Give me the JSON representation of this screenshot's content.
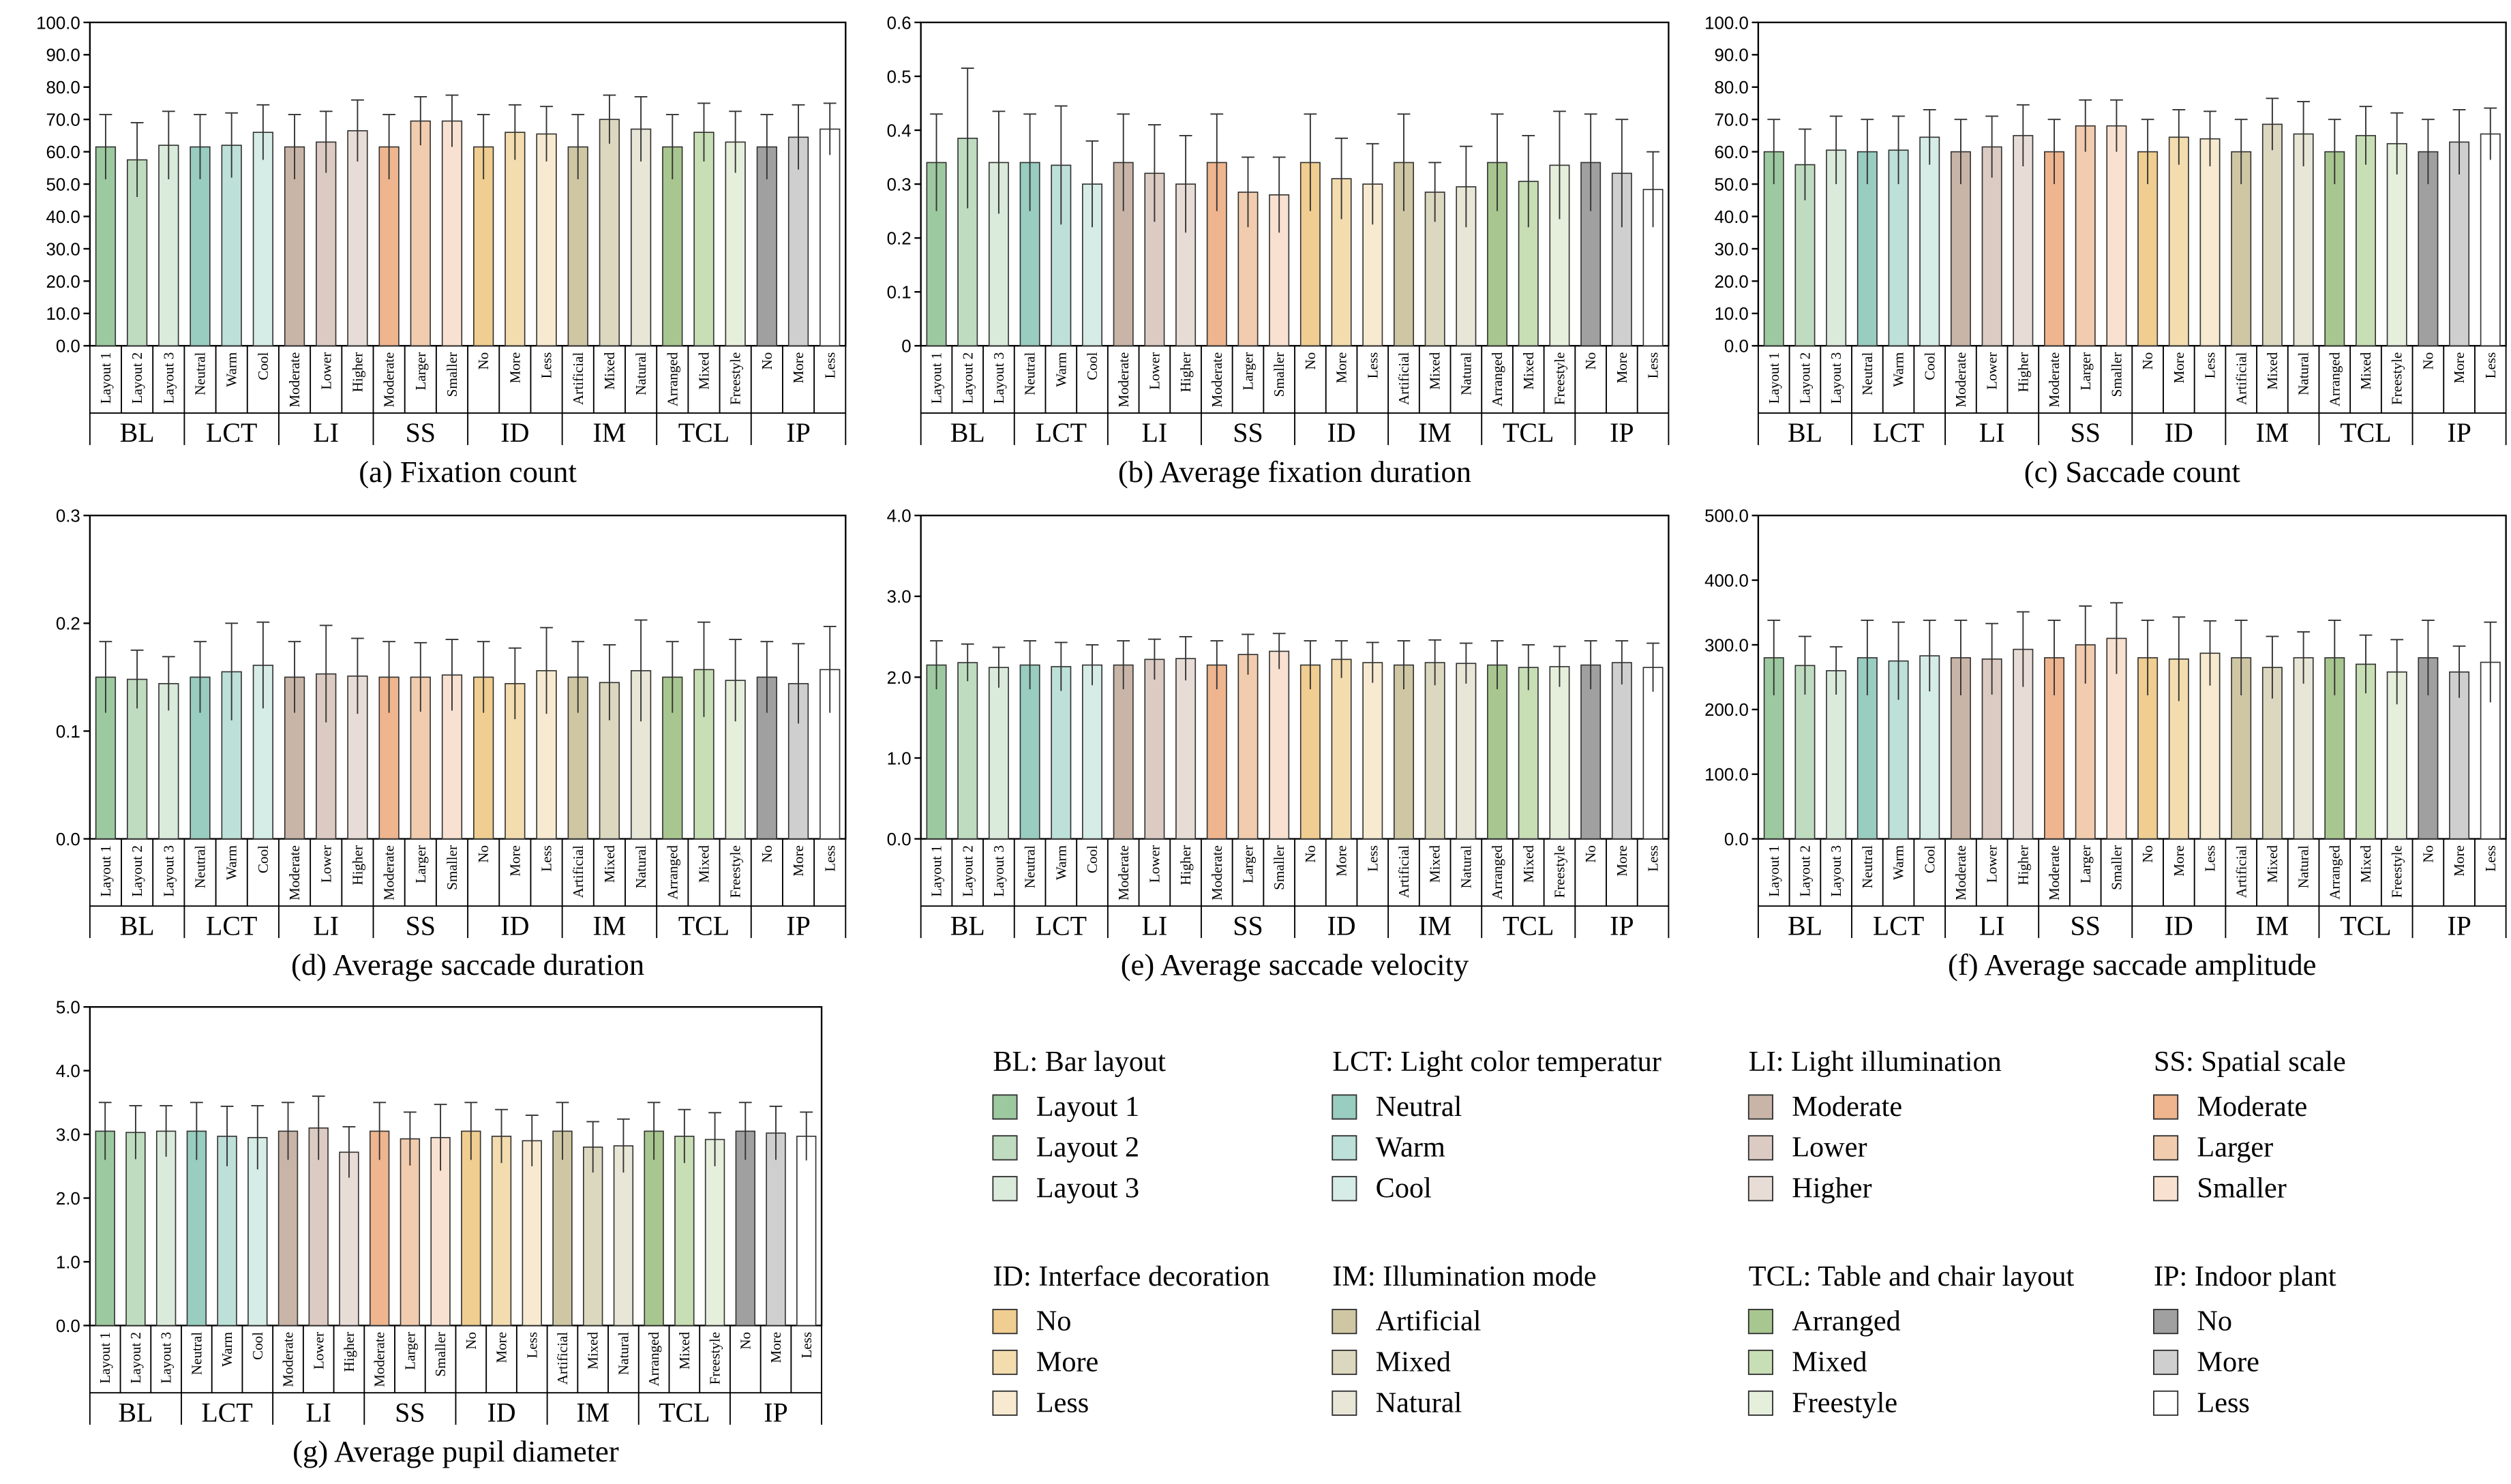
{
  "chart_data": [
    {
      "type": "bar",
      "title": "(a) Fixation count",
      "categories": [
        "Layout 1",
        "Layout 2",
        "Layout 3",
        "Neutral",
        "Warm",
        "Cool",
        "Moderate",
        "Lower",
        "Higher",
        "Moderate",
        "Larger",
        "Smaller",
        "No",
        "More",
        "Less",
        "Artificial",
        "Mixed",
        "Natural",
        "Arranged",
        "Mixed",
        "Freestyle",
        "No",
        "More",
        "Less"
      ],
      "groups": [
        "BL",
        "LCT",
        "LI",
        "SS",
        "ID",
        "IM",
        "TCL",
        "IP"
      ],
      "values": [
        61.5,
        57.5,
        62,
        61.5,
        62,
        66,
        61.5,
        63,
        66.5,
        61.5,
        69.5,
        69.5,
        61.5,
        66,
        65.5,
        61.5,
        70,
        67,
        61.5,
        66,
        63,
        61.5,
        64.5,
        67
      ],
      "errors": [
        10,
        11.5,
        10.5,
        10,
        10,
        8.5,
        10,
        9.5,
        9.5,
        10,
        7.5,
        8,
        10,
        8.5,
        8.5,
        10,
        7.5,
        10,
        10,
        9,
        9.5,
        10,
        10,
        8
      ],
      "ylim": [
        0,
        100
      ],
      "yticks": [
        {
          "value": 0,
          "label": "0.0"
        },
        {
          "value": 10,
          "label": "10.0"
        },
        {
          "value": 20,
          "label": "20.0"
        },
        {
          "value": 30,
          "label": "30.0"
        },
        {
          "value": 40,
          "label": "40.0"
        },
        {
          "value": 50,
          "label": "50.0"
        },
        {
          "value": 60,
          "label": "60.0"
        },
        {
          "value": 70,
          "label": "70.0"
        },
        {
          "value": 80,
          "label": "80.0"
        },
        {
          "value": 90,
          "label": "90.0"
        },
        {
          "value": 100,
          "label": "100.0"
        }
      ]
    },
    {
      "type": "bar",
      "title": "(b) Average fixation duration",
      "categories": [
        "Layout 1",
        "Layout 2",
        "Layout 3",
        "Neutral",
        "Warm",
        "Cool",
        "Moderate",
        "Lower",
        "Higher",
        "Moderate",
        "Larger",
        "Smaller",
        "No",
        "More",
        "Less",
        "Artificial",
        "Mixed",
        "Natural",
        "Arranged",
        "Mixed",
        "Freestyle",
        "No",
        "More",
        "Less"
      ],
      "groups": [
        "BL",
        "LCT",
        "LI",
        "SS",
        "ID",
        "IM",
        "TCL",
        "IP"
      ],
      "values": [
        0.34,
        0.385,
        0.34,
        0.34,
        0.335,
        0.3,
        0.34,
        0.32,
        0.3,
        0.34,
        0.285,
        0.28,
        0.34,
        0.31,
        0.3,
        0.34,
        0.285,
        0.295,
        0.34,
        0.305,
        0.335,
        0.34,
        0.32,
        0.29
      ],
      "errors": [
        0.09,
        0.13,
        0.095,
        0.09,
        0.11,
        0.08,
        0.09,
        0.09,
        0.09,
        0.09,
        0.065,
        0.07,
        0.09,
        0.075,
        0.075,
        0.09,
        0.055,
        0.075,
        0.09,
        0.085,
        0.1,
        0.09,
        0.1,
        0.07
      ],
      "ylim": [
        0,
        0.6
      ],
      "yticks": [
        0,
        0.1,
        0.2,
        0.3,
        0.4,
        0.5,
        0.6
      ]
    },
    {
      "type": "bar",
      "title": "(c) Saccade count",
      "categories": [
        "Layout 1",
        "Layout 2",
        "Layout 3",
        "Neutral",
        "Warm",
        "Cool",
        "Moderate",
        "Lower",
        "Higher",
        "Moderate",
        "Larger",
        "Smaller",
        "No",
        "More",
        "Less",
        "Artificial",
        "Mixed",
        "Natural",
        "Arranged",
        "Mixed",
        "Freestyle",
        "No",
        "More",
        "Less"
      ],
      "groups": [
        "BL",
        "LCT",
        "LI",
        "SS",
        "ID",
        "IM",
        "TCL",
        "IP"
      ],
      "values": [
        60,
        56,
        60.5,
        60,
        60.5,
        64.5,
        60,
        61.5,
        65,
        60,
        68,
        68,
        60,
        64.5,
        64,
        60,
        68.5,
        65.5,
        60,
        65,
        62.5,
        60,
        63,
        65.5
      ],
      "errors": [
        10,
        11,
        10.5,
        10,
        10.5,
        8.5,
        10,
        9.5,
        9.5,
        10,
        8,
        8,
        10,
        8.5,
        8.5,
        10,
        8,
        10,
        10,
        9,
        9.5,
        10,
        10,
        8
      ],
      "ylim": [
        0,
        100
      ],
      "yticks": [
        {
          "value": 0,
          "label": "0.0"
        },
        {
          "value": 10,
          "label": "10.0"
        },
        {
          "value": 20,
          "label": "20.0"
        },
        {
          "value": 30,
          "label": "30.0"
        },
        {
          "value": 40,
          "label": "40.0"
        },
        {
          "value": 50,
          "label": "50.0"
        },
        {
          "value": 60,
          "label": "60.0"
        },
        {
          "value": 70,
          "label": "70.0"
        },
        {
          "value": 80,
          "label": "80.0"
        },
        {
          "value": 90,
          "label": "90.0"
        },
        {
          "value": 100,
          "label": "100.0"
        }
      ]
    },
    {
      "type": "bar",
      "title": "(d) Average saccade duration",
      "categories": [
        "Layout 1",
        "Layout 2",
        "Layout 3",
        "Neutral",
        "Warm",
        "Cool",
        "Moderate",
        "Lower",
        "Higher",
        "Moderate",
        "Larger",
        "Smaller",
        "No",
        "More",
        "Less",
        "Artificial",
        "Mixed",
        "Natural",
        "Arranged",
        "Mixed",
        "Freestyle",
        "No",
        "More",
        "Less"
      ],
      "groups": [
        "BL",
        "LCT",
        "LI",
        "SS",
        "ID",
        "IM",
        "TCL",
        "IP"
      ],
      "values": [
        0.15,
        0.148,
        0.144,
        0.15,
        0.155,
        0.161,
        0.15,
        0.153,
        0.151,
        0.15,
        0.15,
        0.152,
        0.15,
        0.144,
        0.156,
        0.15,
        0.145,
        0.156,
        0.15,
        0.157,
        0.147,
        0.15,
        0.144,
        0.157
      ],
      "errors": [
        0.033,
        0.027,
        0.025,
        0.033,
        0.045,
        0.04,
        0.033,
        0.045,
        0.035,
        0.033,
        0.032,
        0.033,
        0.033,
        0.033,
        0.04,
        0.033,
        0.035,
        0.047,
        0.033,
        0.044,
        0.038,
        0.033,
        0.037,
        0.04
      ],
      "ylim": [
        0,
        0.3
      ],
      "yticks": [
        {
          "value": 0,
          "label": "0.0"
        },
        0.1,
        0.2,
        0.3
      ]
    },
    {
      "type": "bar",
      "title": "(e) Average saccade velocity",
      "categories": [
        "Layout 1",
        "Layout 2",
        "Layout 3",
        "Neutral",
        "Warm",
        "Cool",
        "Moderate",
        "Lower",
        "Higher",
        "Moderate",
        "Larger",
        "Smaller",
        "No",
        "More",
        "Less",
        "Artificial",
        "Mixed",
        "Natural",
        "Arranged",
        "Mixed",
        "Freestyle",
        "No",
        "More",
        "Less"
      ],
      "groups": [
        "BL",
        "LCT",
        "LI",
        "SS",
        "ID",
        "IM",
        "TCL",
        "IP"
      ],
      "values": [
        2.15,
        2.18,
        2.12,
        2.15,
        2.13,
        2.15,
        2.15,
        2.22,
        2.23,
        2.15,
        2.28,
        2.32,
        2.15,
        2.22,
        2.18,
        2.15,
        2.18,
        2.17,
        2.15,
        2.12,
        2.13,
        2.15,
        2.18,
        2.12
      ],
      "errors": [
        0.3,
        0.23,
        0.25,
        0.3,
        0.3,
        0.25,
        0.3,
        0.25,
        0.27,
        0.3,
        0.25,
        0.22,
        0.3,
        0.23,
        0.25,
        0.3,
        0.28,
        0.25,
        0.3,
        0.28,
        0.25,
        0.3,
        0.27,
        0.3
      ],
      "ylim": [
        0,
        4
      ],
      "yticks": [
        {
          "value": 0,
          "label": "0.0"
        },
        {
          "value": 1,
          "label": "1.0"
        },
        {
          "value": 2,
          "label": "2.0"
        },
        {
          "value": 3,
          "label": "3.0"
        },
        {
          "value": 4,
          "label": "4.0"
        }
      ]
    },
    {
      "type": "bar",
      "title": "(f) Average saccade amplitude",
      "categories": [
        "Layout 1",
        "Layout 2",
        "Layout 3",
        "Neutral",
        "Warm",
        "Cool",
        "Moderate",
        "Lower",
        "Higher",
        "Moderate",
        "Larger",
        "Smaller",
        "No",
        "More",
        "Less",
        "Artificial",
        "Mixed",
        "Natural",
        "Arranged",
        "Mixed",
        "Freestyle",
        "No",
        "More",
        "Less"
      ],
      "groups": [
        "BL",
        "LCT",
        "LI",
        "SS",
        "ID",
        "IM",
        "TCL",
        "IP"
      ],
      "values": [
        280,
        268,
        260,
        280,
        275,
        283,
        280,
        278,
        293,
        280,
        300,
        310,
        280,
        278,
        287,
        280,
        265,
        280,
        280,
        270,
        258,
        280,
        258,
        273
      ],
      "errors": [
        58,
        45,
        37,
        58,
        60,
        55,
        58,
        55,
        58,
        58,
        60,
        55,
        58,
        65,
        50,
        58,
        48,
        40,
        58,
        45,
        50,
        58,
        40,
        62
      ],
      "ylim": [
        0,
        500
      ],
      "yticks": [
        {
          "value": 0,
          "label": "0.0"
        },
        {
          "value": 100,
          "label": "100.0"
        },
        {
          "value": 200,
          "label": "200.0"
        },
        {
          "value": 300,
          "label": "300.0"
        },
        {
          "value": 400,
          "label": "400.0"
        },
        {
          "value": 500,
          "label": "500.0"
        }
      ]
    },
    {
      "type": "bar",
      "title": "(g) Average pupil diameter",
      "categories": [
        "Layout 1",
        "Layout 2",
        "Layout 3",
        "Neutral",
        "Warm",
        "Cool",
        "Moderate",
        "Lower",
        "Higher",
        "Moderate",
        "Larger",
        "Smaller",
        "No",
        "More",
        "Less",
        "Artificial",
        "Mixed",
        "Natural",
        "Arranged",
        "Mixed",
        "Freestyle",
        "No",
        "More",
        "Less"
      ],
      "groups": [
        "BL",
        "LCT",
        "LI",
        "SS",
        "ID",
        "IM",
        "TCL",
        "IP"
      ],
      "values": [
        3.05,
        3.03,
        3.05,
        3.05,
        2.97,
        2.95,
        3.05,
        3.1,
        2.72,
        3.05,
        2.93,
        2.95,
        3.05,
        2.97,
        2.9,
        3.05,
        2.8,
        2.82,
        3.05,
        2.97,
        2.92,
        3.05,
        3.02,
        2.97
      ],
      "errors": [
        0.45,
        0.42,
        0.4,
        0.45,
        0.47,
        0.5,
        0.45,
        0.5,
        0.4,
        0.45,
        0.42,
        0.52,
        0.45,
        0.42,
        0.4,
        0.45,
        0.4,
        0.42,
        0.45,
        0.42,
        0.42,
        0.45,
        0.42,
        0.38
      ],
      "ylim": [
        0,
        5
      ],
      "yticks": [
        {
          "value": 0,
          "label": "0.0"
        },
        {
          "value": 1,
          "label": "1.0"
        },
        {
          "value": 2,
          "label": "2.0"
        },
        {
          "value": 3,
          "label": "3.0"
        },
        {
          "value": 4,
          "label": "4.0"
        },
        {
          "value": 5,
          "label": "5.0"
        }
      ]
    }
  ],
  "legend": [
    {
      "title": "BL: Bar layout",
      "items": [
        {
          "label": "Layout 1",
          "color": "#9dc9a0"
        },
        {
          "label": "Layout 2",
          "color": "#c0dcc0"
        },
        {
          "label": "Layout 3",
          "color": "#daeadb"
        }
      ]
    },
    {
      "title": "LCT: Light color temperatur",
      "items": [
        {
          "label": "Neutral",
          "color": "#98cdc0"
        },
        {
          "label": "Warm",
          "color": "#bde0d8"
        },
        {
          "label": "Cool",
          "color": "#d6ece6"
        }
      ]
    },
    {
      "title": "LI: Light illumination",
      "items": [
        {
          "label": "Moderate",
          "color": "#c9b5a8"
        },
        {
          "label": "Lower",
          "color": "#dccbc2"
        },
        {
          "label": "Higher",
          "color": "#e8dcd6"
        }
      ]
    },
    {
      "title": "SS: Spatial scale",
      "items": [
        {
          "label": "Moderate",
          "color": "#eeb58e"
        },
        {
          "label": "Larger",
          "color": "#f2ccae"
        },
        {
          "label": "Smaller",
          "color": "#f8e1d0"
        }
      ]
    },
    {
      "title": "ID: Interface decoration",
      "items": [
        {
          "label": "No",
          "color": "#f0cd90"
        },
        {
          "label": "More",
          "color": "#f3dcae"
        },
        {
          "label": "Less",
          "color": "#f7ead0"
        }
      ]
    },
    {
      "title": "IM: Illumination mode",
      "items": [
        {
          "label": "Artificial",
          "color": "#cfc7a4"
        },
        {
          "label": "Mixed",
          "color": "#dcd7bf"
        },
        {
          "label": "Natural",
          "color": "#e8e6d6"
        }
      ]
    },
    {
      "title": "TCL: Table and chair layout",
      "items": [
        {
          "label": "Arranged",
          "color": "#a8c68f"
        },
        {
          "label": "Mixed",
          "color": "#c8deb5"
        },
        {
          "label": "Freestyle",
          "color": "#e6efdc"
        }
      ]
    },
    {
      "title": "IP: Indoor plant",
      "items": [
        {
          "label": "No",
          "color": "#a0a0a0"
        },
        {
          "label": "More",
          "color": "#cfcfcf"
        },
        {
          "label": "Less",
          "color": "#ffffff"
        }
      ]
    }
  ]
}
